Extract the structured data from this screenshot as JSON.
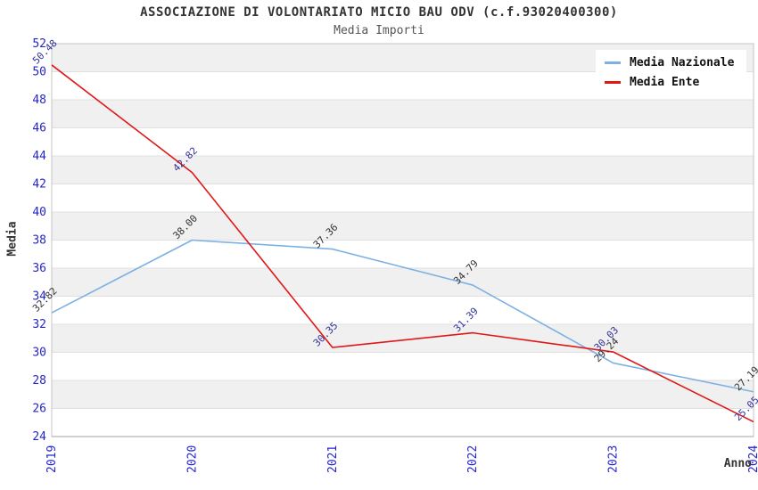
{
  "chart_data": {
    "type": "line",
    "title": "ASSOCIAZIONE DI VOLONTARIATO MICIO BAU ODV (c.f.93020400300)",
    "subtitle": "Media Importi",
    "xlabel": "Anno",
    "ylabel": "Media",
    "categories": [
      "2019",
      "2020",
      "2021",
      "2022",
      "2023",
      "2024"
    ],
    "series": [
      {
        "name": "Media Nazionale",
        "color": "#7db1e3",
        "label_color": "#333333",
        "values": [
          32.82,
          38.0,
          37.36,
          34.79,
          29.24,
          27.19
        ]
      },
      {
        "name": "Media Ente",
        "color": "#e01717",
        "label_color": "#333399",
        "values": [
          50.48,
          42.82,
          30.35,
          31.39,
          30.03,
          25.05
        ]
      }
    ],
    "ylim": [
      24,
      52
    ],
    "ytick_step": 2,
    "value_decimals": 2,
    "grid": true,
    "legend_position": "top-right",
    "band_colors": [
      "#f0f0f0",
      "#ffffff"
    ],
    "gridline_color": "#e0e0e0",
    "plot_border_color": "#c4c4c4",
    "axis_line_color": "#a0a0a0",
    "axis_tick_color": "#2424cc"
  }
}
